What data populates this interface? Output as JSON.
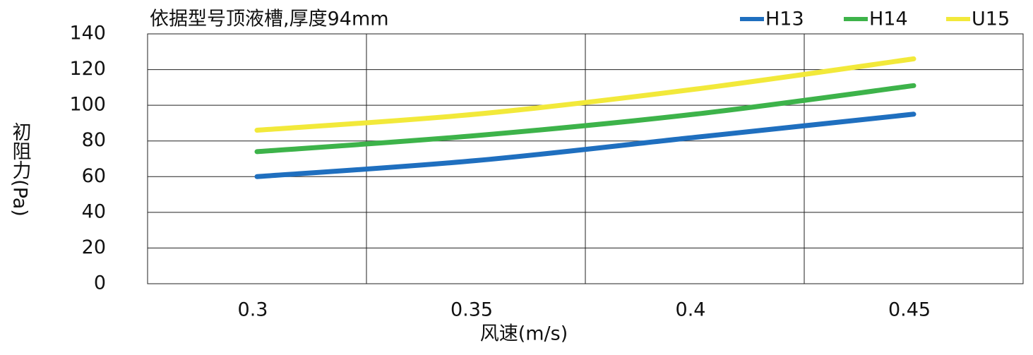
{
  "chart_data": {
    "type": "line",
    "title": "依据型号顶液槽,厚度94mm",
    "x_label": "风速(m/s)",
    "y_label": "初阻力(Pa)",
    "categories": [
      "0.3",
      "0.35",
      "0.4",
      "0.45"
    ],
    "series": [
      {
        "name": "H13",
        "color": "#1f6fbf",
        "values": [
          60,
          69,
          82,
          95
        ]
      },
      {
        "name": "H14",
        "color": "#3db34a",
        "values": [
          74,
          83,
          95,
          111
        ]
      },
      {
        "name": "U15",
        "color": "#f2e93a",
        "values": [
          86,
          95,
          109,
          126
        ]
      }
    ],
    "ylim": [
      0,
      140
    ],
    "yticks": [
      0,
      20,
      40,
      60,
      80,
      100,
      120,
      140
    ],
    "grid": true
  }
}
